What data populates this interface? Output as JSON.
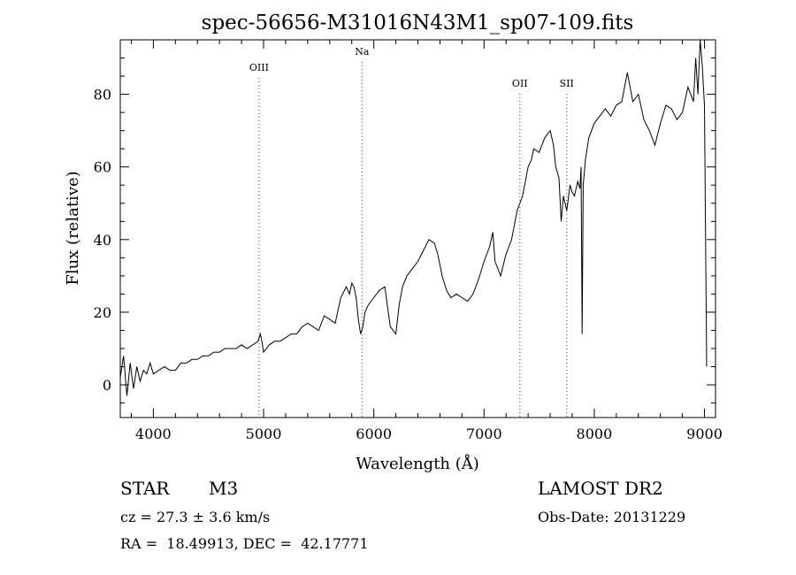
{
  "chart_data": {
    "type": "line",
    "title": "spec-56656-M31016N43M1_sp07-109.fits",
    "xlabel": "Wavelength (Å)",
    "ylabel": "Flux (relative)",
    "xlim": [
      3700,
      9100
    ],
    "ylim": [
      -9,
      95
    ],
    "x_ticks": [
      4000,
      5000,
      6000,
      7000,
      8000,
      9000
    ],
    "y_ticks": [
      0,
      20,
      40,
      60,
      80
    ],
    "grid": false,
    "line_color": "#000000",
    "series": [
      {
        "x": [
          3700,
          3730,
          3760,
          3790,
          3820,
          3850,
          3880,
          3910,
          3940,
          3970,
          4000,
          4050,
          4100,
          4150,
          4200,
          4250,
          4300,
          4350,
          4400,
          4450,
          4500,
          4550,
          4600,
          4650,
          4700,
          4750,
          4800,
          4850,
          4900,
          4950,
          4970,
          4985,
          5000,
          5050,
          5100,
          5150,
          5200,
          5250,
          5300,
          5350,
          5400,
          5450,
          5500,
          5550,
          5600,
          5650,
          5700,
          5750,
          5780,
          5800,
          5820,
          5840,
          5860,
          5880,
          5900,
          5920,
          5950,
          6000,
          6050,
          6100,
          6150,
          6200,
          6230,
          6260,
          6300,
          6350,
          6400,
          6450,
          6500,
          6550,
          6580,
          6620,
          6660,
          6700,
          6750,
          6800,
          6850,
          6900,
          6950,
          7000,
          7050,
          7080,
          7100,
          7150,
          7200,
          7250,
          7300,
          7350,
          7400,
          7430,
          7450,
          7500,
          7550,
          7600,
          7630,
          7650,
          7680,
          7700,
          7720,
          7750,
          7780,
          7800,
          7820,
          7850,
          7870,
          7880,
          7890,
          7900,
          7920,
          7950,
          8000,
          8050,
          8100,
          8150,
          8200,
          8250,
          8300,
          8350,
          8400,
          8450,
          8500,
          8550,
          8600,
          8650,
          8700,
          8750,
          8800,
          8850,
          8900,
          8920,
          8940,
          8960,
          8980,
          9000,
          9020
        ],
        "y": [
          2,
          8,
          -3,
          6,
          -1,
          5,
          1,
          4,
          3,
          6,
          3,
          4,
          5,
          4,
          4,
          6,
          6,
          7,
          7,
          8,
          8,
          9,
          9,
          10,
          10,
          10,
          11,
          10,
          11,
          12,
          14,
          12,
          9,
          11,
          12,
          12,
          13,
          14,
          14,
          16,
          17,
          16,
          15,
          19,
          18,
          17,
          24,
          27,
          25,
          28,
          27,
          24,
          18,
          14,
          16,
          20,
          22,
          24,
          26,
          27,
          16,
          14,
          22,
          27,
          30,
          32,
          34,
          37,
          40,
          39,
          36,
          30,
          26,
          24,
          25,
          24,
          23,
          25,
          29,
          34,
          38,
          42,
          34,
          30,
          36,
          40,
          48,
          52,
          60,
          62,
          65,
          64,
          68,
          70,
          66,
          60,
          57,
          45,
          52,
          48,
          55,
          53,
          52,
          56,
          54,
          60,
          14,
          55,
          62,
          68,
          72,
          74,
          76,
          74,
          77,
          78,
          86,
          78,
          80,
          73,
          70,
          66,
          72,
          77,
          76,
          73,
          75,
          82,
          78,
          90,
          80,
          95,
          88,
          77,
          5
        ]
      }
    ],
    "annotations": [
      {
        "label": "OIII",
        "x": 4959
      },
      {
        "label": "Na",
        "x": 5893
      },
      {
        "label": "OII",
        "x": 7325
      },
      {
        "label": "SII",
        "x": 7750
      }
    ]
  },
  "info": {
    "object_type": "STAR",
    "subclass": "M3",
    "cz": "cz = 27.3 ± 3.6 km/s",
    "coords": "RA =  18.49913, DEC =  42.17771",
    "survey": "LAMOST DR2",
    "obs_date": "Obs-Date: 20131229"
  }
}
